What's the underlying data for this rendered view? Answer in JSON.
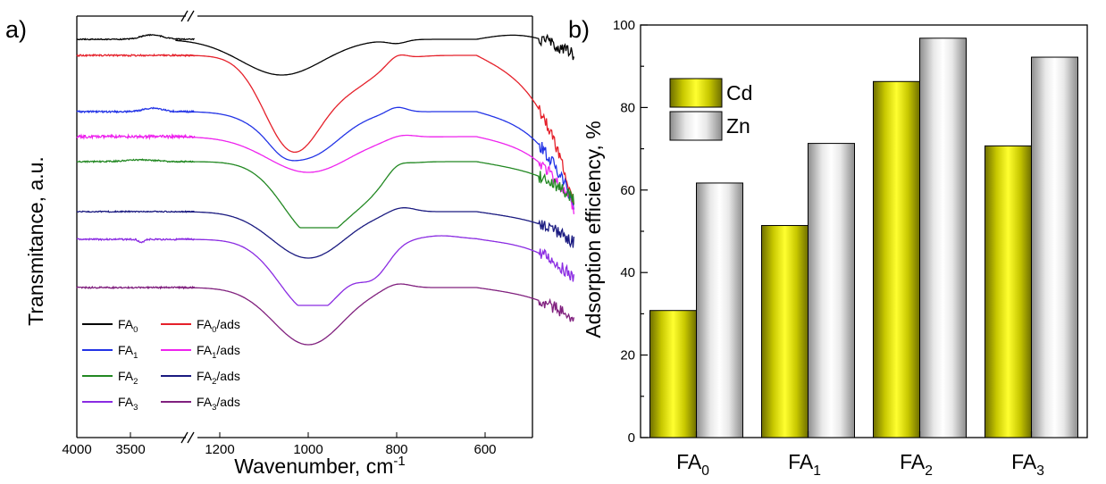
{
  "chart_data": [
    {
      "panel_label": "a)",
      "type": "line",
      "xlabel": "Wavenumber, cm",
      "xlabel_sup": "-1",
      "ylabel": "Transmitance, a.u.",
      "x_tick_labels_high": [
        "4000",
        "3500"
      ],
      "x_tick_labels_low": [
        "1200",
        "1000",
        "800",
        "600"
      ],
      "x_ranges": [
        [
          4000,
          2900
        ],
        [
          1300,
          400
        ]
      ],
      "axis_break": true,
      "legend": {
        "placement": "bottom-left",
        "items": [
          {
            "base": "FA",
            "sub": "0",
            "suffix": "",
            "color": "#000000"
          },
          {
            "base": "FA",
            "sub": "0",
            "suffix": "/ads",
            "color": "#e5202a"
          },
          {
            "base": "FA",
            "sub": "1",
            "suffix": "",
            "color": "#2233e6"
          },
          {
            "base": "FA",
            "sub": "1",
            "suffix": "/ads",
            "color": "#ee22ee"
          },
          {
            "base": "FA",
            "sub": "2",
            "suffix": "",
            "color": "#228822"
          },
          {
            "base": "FA",
            "sub": "2",
            "suffix": "/ads",
            "color": "#1a1a80"
          },
          {
            "base": "FA",
            "sub": "3",
            "suffix": "",
            "color": "#8a2be2"
          },
          {
            "base": "FA",
            "sub": "3",
            "suffix": "/ads",
            "color": "#80207e"
          }
        ]
      },
      "series": [
        {
          "name": "FA0",
          "color": "#000000"
        },
        {
          "name": "FA0/ads",
          "color": "#e5202a"
        },
        {
          "name": "FA1",
          "color": "#2233e6"
        },
        {
          "name": "FA1/ads",
          "color": "#ee22ee"
        },
        {
          "name": "FA2",
          "color": "#228822"
        },
        {
          "name": "FA2/ads",
          "color": "#1a1a80"
        },
        {
          "name": "FA3",
          "color": "#8a2be2"
        },
        {
          "name": "FA3/ads",
          "color": "#80207e"
        }
      ]
    },
    {
      "panel_label": "b)",
      "type": "bar",
      "ylabel": "Adsorption efficiency, %",
      "ylim": [
        0,
        100
      ],
      "y_ticks": [
        0,
        20,
        40,
        60,
        80,
        100
      ],
      "categories": [
        {
          "base": "FA",
          "sub": "0"
        },
        {
          "base": "FA",
          "sub": "1"
        },
        {
          "base": "FA",
          "sub": "2"
        },
        {
          "base": "FA",
          "sub": "3"
        }
      ],
      "series": [
        {
          "name": "Cd",
          "values": [
            30.8,
            51.4,
            86.3,
            70.7
          ],
          "color": "#e2e21a"
        },
        {
          "name": "Zn",
          "values": [
            61.7,
            71.3,
            96.8,
            92.2
          ],
          "color": "#d8d8d8"
        }
      ],
      "legend_placement": "top-left"
    }
  ]
}
